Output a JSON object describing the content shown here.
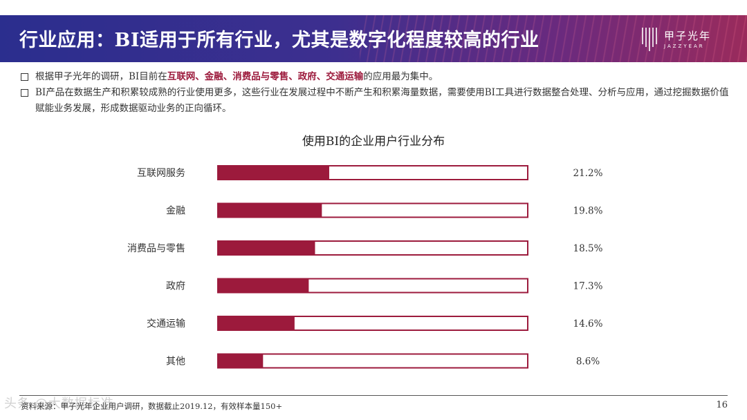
{
  "header": {
    "title": "行业应用：BI适用于所有行业，尤其是数字化程度较高的行业",
    "logo_cn": "甲子光年",
    "logo_en": "JAZZYEAR"
  },
  "bullets": [
    {
      "segments": [
        {
          "text": "根据甲子光年的调研，BI目前在",
          "hl": false
        },
        {
          "text": "互联网、金融、消费品与零售、政府、交通运输",
          "hl": true
        },
        {
          "text": "的应用最为集中。",
          "hl": false
        }
      ]
    },
    {
      "segments": [
        {
          "text": "BI产品在数据生产和积累较成熟的行业使用更多，这些行业在发展过程中不断产生和积累海量数据，需要使用BI工具进行数据整合处理、分析与应用，通过挖掘数据价值赋能业务发展，形成数据驱动业务的正向循环。",
          "hl": false
        }
      ]
    }
  ],
  "chart_data": {
    "type": "bar",
    "orientation": "horizontal",
    "title": "使用BI的企业用户行业分布",
    "categories": [
      "互联网服务",
      "金融",
      "消费品与零售",
      "政府",
      "交通运输",
      "其他"
    ],
    "values": [
      21.2,
      19.8,
      18.5,
      17.3,
      14.6,
      8.6
    ],
    "value_labels": [
      "21.2%",
      "19.8%",
      "18.5%",
      "17.3%",
      "14.6%",
      "8.6%"
    ],
    "unit": "%",
    "xlim": [
      0,
      59
    ],
    "grid": false,
    "legend": "none",
    "colors": {
      "bar": "#9c1a3c",
      "track_border": "#9c1a3c",
      "track_fill": "#ffffff"
    }
  },
  "footer": {
    "source": "资料来源：甲子光年企业用户调研，数据截止2019.12，有效样本量150+",
    "page": "16",
    "watermark": "头条 @大数据标准"
  }
}
